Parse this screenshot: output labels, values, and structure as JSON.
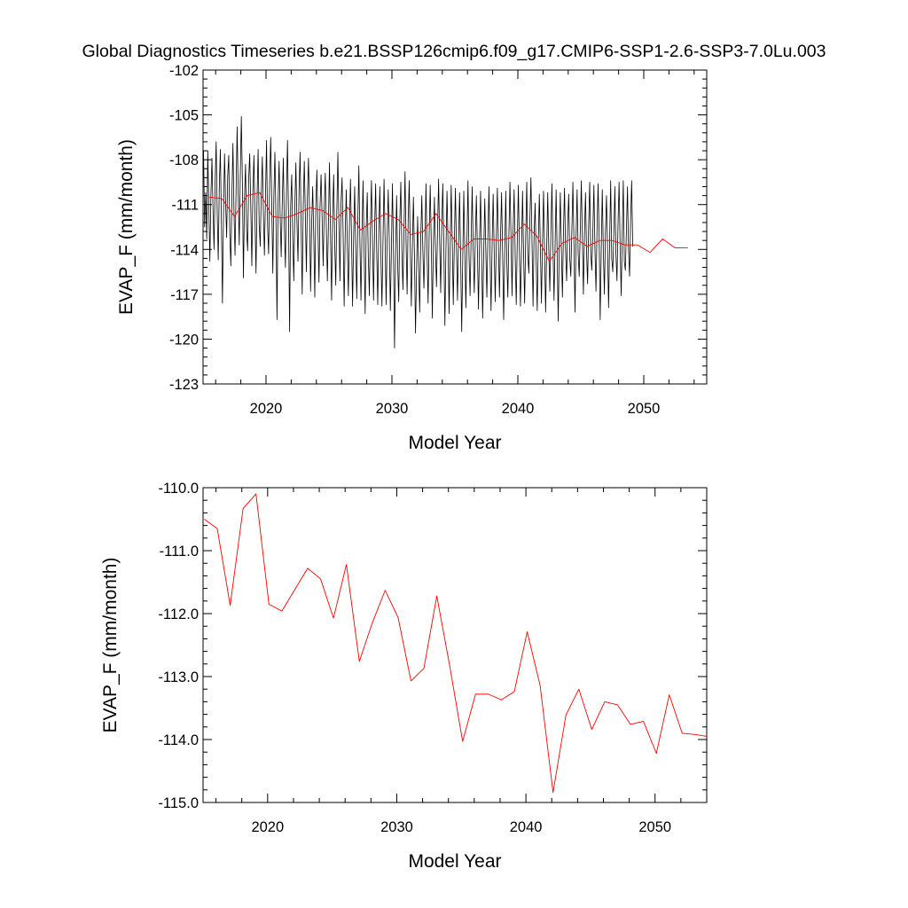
{
  "title": "Global Diagnostics Timeseries b.e21.BSSP126cmip6.f09_g17.CMIP6-SSP1-2.6-SSP3-7.0Lu.003",
  "colors": {
    "monthly": "#000000",
    "annual": "#ff0000",
    "axis": "#000000"
  },
  "chart_data": [
    {
      "type": "line",
      "xlabel": "Model Year",
      "ylabel": "EVAP_F (mm/month)",
      "xlim": [
        2015,
        2055
      ],
      "ylim": [
        -123,
        -102
      ],
      "xticks": [
        2020,
        2030,
        2040,
        2050
      ],
      "xtick_labels": [
        "2020",
        "2030",
        "2040",
        "2050"
      ],
      "yticks": [
        -102,
        -105,
        -108,
        -111,
        -114,
        -117,
        -120,
        -123
      ],
      "ytick_labels": [
        "-102",
        "-105",
        "-108",
        "-111",
        "-114",
        "-117",
        "-120",
        "-123"
      ],
      "series": [
        {
          "style": "monthly",
          "x_start": 2015.04,
          "x_step": 0.0833333,
          "values": [
            -107.4,
            -112.5,
            -110.2,
            -113.3,
            -107.4,
            -111.0,
            -114.8,
            -110.4,
            -107.9,
            -111.3,
            -114.0,
            -109.6,
            -106.8,
            -111.5,
            -114.7,
            -109.8,
            -107.3,
            -112.1,
            -117.6,
            -111.6,
            -107.6,
            -110.8,
            -113.2,
            -109.1,
            -107.7,
            -112.9,
            -115.1,
            -110.4,
            -106.9,
            -111.5,
            -114.4,
            -110.0,
            -105.8,
            -110.2,
            -113.7,
            -109.1,
            -105.1,
            -109.4,
            -115.9,
            -110.6,
            -108.3,
            -112.7,
            -114.1,
            -109.3,
            -107.6,
            -111.1,
            -115.1,
            -110.2,
            -107.7,
            -111.9,
            -115.6,
            -110.5,
            -107.3,
            -112.3,
            -113.8,
            -110.3,
            -107.8,
            -111.5,
            -114.4,
            -110.6,
            -106.7,
            -112.4,
            -114.3,
            -109.4,
            -106.5,
            -111.0,
            -115.6,
            -110.4,
            -107.5,
            -112.1,
            -118.7,
            -110.8,
            -108.1,
            -111.8,
            -114.5,
            -110.9,
            -107.9,
            -112.6,
            -115.2,
            -110.2,
            -106.7,
            -112.0,
            -119.5,
            -111.1,
            -109.0,
            -113.2,
            -116.1,
            -111.1,
            -108.2,
            -112.2,
            -114.8,
            -110.1,
            -107.5,
            -112.5,
            -117.0,
            -111.1,
            -108.1,
            -111.7,
            -115.5,
            -110.4,
            -107.9,
            -111.6,
            -116.8,
            -112.4,
            -109.8,
            -113.0,
            -117.2,
            -111.1,
            -108.7,
            -112.6,
            -116.2,
            -111.1,
            -109.0,
            -111.9,
            -115.1,
            -111.3,
            -108.9,
            -112.6,
            -116.1,
            -112.3,
            -108.2,
            -113.0,
            -117.4,
            -111.8,
            -109.0,
            -113.6,
            -116.4,
            -111.5,
            -107.5,
            -112.3,
            -116.1,
            -110.9,
            -109.2,
            -112.9,
            -117.8,
            -112.9,
            -110.0,
            -113.7,
            -117.1,
            -112.6,
            -109.3,
            -113.1,
            -117.8,
            -113.3,
            -109.8,
            -114.0,
            -117.3,
            -112.0,
            -108.4,
            -113.5,
            -117.4,
            -112.9,
            -109.4,
            -114.1,
            -118.3,
            -112.6,
            -110.2,
            -114.5,
            -117.1,
            -112.6,
            -109.4,
            -113.5,
            -117.4,
            -112.6,
            -109.6,
            -114.1,
            -117.7,
            -112.8,
            -109.8,
            -114.4,
            -117.8,
            -113.4,
            -109.3,
            -113.3,
            -117.7,
            -113.2,
            -110.0,
            -113.4,
            -118.1,
            -114.1,
            -109.6,
            -114.0,
            -120.6,
            -114.3,
            -110.4,
            -115.0,
            -117.5,
            -112.1,
            -109.5,
            -114.0,
            -116.7,
            -112.8,
            -108.8,
            -113.5,
            -117.0,
            -112.0,
            -109.4,
            -113.7,
            -117.8,
            -113.8,
            -110.5,
            -114.5,
            -119.6,
            -115.3,
            -111.8,
            -115.3,
            -118.2,
            -113.2,
            -110.4,
            -114.1,
            -116.6,
            -113.3,
            -109.6,
            -114.3,
            -117.6,
            -113.0,
            -109.7,
            -113.5,
            -118.6,
            -113.8,
            -110.5,
            -114.0,
            -116.5,
            -112.6,
            -109.3,
            -113.4,
            -116.9,
            -112.3,
            -109.6,
            -114.0,
            -119.1,
            -114.0,
            -110.1,
            -113.6,
            -118.3,
            -113.9,
            -109.7,
            -113.5,
            -117.7,
            -113.5,
            -109.9,
            -113.8,
            -117.4,
            -113.5,
            -110.2,
            -114.4,
            -119.5,
            -114.7,
            -110.1,
            -114.2,
            -117.9,
            -113.5,
            -109.4,
            -114.5,
            -117.1,
            -113.3,
            -109.8,
            -114.0,
            -116.9,
            -113.2,
            -110.4,
            -114.2,
            -118.0,
            -113.6,
            -110.1,
            -114.5,
            -118.6,
            -114.2,
            -110.6,
            -114.1,
            -117.2,
            -113.1,
            -109.8,
            -114.3,
            -118.1,
            -113.7,
            -110.3,
            -114.2,
            -117.5,
            -113.3,
            -109.9,
            -113.7,
            -117.2,
            -113.2,
            -110.2,
            -114.2,
            -118.7,
            -114.3,
            -110.1,
            -114.8,
            -117.2,
            -113.0,
            -109.5,
            -113.1,
            -117.1,
            -112.8,
            -110.0,
            -114.5,
            -117.7,
            -113.3,
            -109.7,
            -114.0,
            -117.8,
            -114.2,
            -110.1,
            -114.3,
            -117.6,
            -113.2,
            -109.5,
            -114.3,
            -115.6,
            -112.0,
            -109.2,
            -113.4,
            -117.8,
            -113.0,
            -110.9,
            -114.8,
            -118.1,
            -113.6,
            -110.3,
            -113.9,
            -117.6,
            -113.6,
            -110.1,
            -114.3,
            -118.2,
            -114.0,
            -110.2,
            -114.0,
            -116.8,
            -113.0,
            -109.6,
            -113.8,
            -117.4,
            -113.8,
            -110.0,
            -114.4,
            -118.8,
            -113.8,
            -110.2,
            -114.0,
            -117.2,
            -112.8,
            -109.9,
            -114.1,
            -116.1,
            -112.4,
            -110.3,
            -114.6,
            -115.8,
            -112.7,
            -109.5,
            -113.6,
            -118.2,
            -113.2,
            -110.0,
            -114.3,
            -115.8,
            -112.8,
            -109.4,
            -113.1,
            -117.0,
            -113.0,
            -110.2,
            -114.2,
            -116.3,
            -112.4,
            -109.5,
            -114.3,
            -115.4,
            -112.8,
            -109.7,
            -114.0,
            -116.8,
            -112.6,
            -109.6,
            -113.1,
            -118.7,
            -114.1,
            -110.0,
            -114.1,
            -117.0,
            -112.9,
            -110.4,
            -113.9,
            -117.9,
            -113.5,
            -109.4,
            -114.6,
            -115.5,
            -112.9,
            -109.8,
            -114.3,
            -116.1,
            -112.3,
            -109.5,
            -113.7,
            -117.1,
            -113.2,
            -109.4,
            -114.8,
            -115.4,
            -112.7,
            -109.8,
            -114.0,
            -115.8,
            -112.0,
            -109.4,
            -113.8
          ]
        },
        {
          "style": "annual",
          "x": [
            2015.5,
            2016.5,
            2017.5,
            2018.5,
            2019.5,
            2020.5,
            2021.5,
            2022.5,
            2023.5,
            2024.5,
            2025.5,
            2026.5,
            2027.5,
            2028.5,
            2029.5,
            2030.5,
            2031.5,
            2032.5,
            2033.5,
            2034.5,
            2035.5,
            2036.5,
            2037.5,
            2038.5,
            2039.5,
            2040.5,
            2041.5,
            2042.5,
            2043.5,
            2044.5,
            2045.5,
            2046.5,
            2047.5,
            2048.5,
            2049.5,
            2050.5,
            2051.5,
            2052.5,
            2053.5
          ],
          "values": [
            -110.5,
            -110.6,
            -111.8,
            -110.4,
            -110.2,
            -111.8,
            -111.9,
            -111.6,
            -111.2,
            -111.4,
            -112.0,
            -111.2,
            -112.7,
            -112.1,
            -111.6,
            -112.0,
            -113.0,
            -112.8,
            -111.6,
            -112.8,
            -114.0,
            -113.3,
            -113.3,
            -113.4,
            -113.2,
            -112.3,
            -113.1,
            -114.8,
            -113.6,
            -113.2,
            -113.8,
            -113.4,
            -113.4,
            -113.7,
            -113.7,
            -114.2,
            -113.3,
            -113.9,
            -113.9
          ]
        }
      ]
    },
    {
      "type": "line",
      "xlabel": "Model Year",
      "ylabel": "EVAP_F (mm/month)",
      "xlim": [
        2015,
        2054
      ],
      "ylim": [
        -115.0,
        -110.0
      ],
      "xticks": [
        2020,
        2030,
        2040,
        2050
      ],
      "xtick_labels": [
        "2020",
        "2030",
        "2040",
        "2050"
      ],
      "yticks": [
        -110.0,
        -111.0,
        -112.0,
        -113.0,
        -114.0,
        -115.0
      ],
      "ytick_labels": [
        "-110.0",
        "-111.0",
        "-112.0",
        "-113.0",
        "-114.0",
        "-115.0"
      ],
      "series": [
        {
          "style": "annual",
          "x": [
            2015.1,
            2016.1,
            2017.1,
            2018.1,
            2019.1,
            2020.1,
            2021.1,
            2022.1,
            2023.1,
            2024.1,
            2025.1,
            2026.1,
            2027.1,
            2028.1,
            2029.1,
            2030.1,
            2031.1,
            2032.1,
            2033.1,
            2034.1,
            2035.1,
            2036.1,
            2037.1,
            2038.1,
            2039.1,
            2040.1,
            2041.1,
            2042.1,
            2043.1,
            2044.1,
            2045.1,
            2046.1,
            2047.1,
            2048.1,
            2049.1,
            2050.1,
            2051.1,
            2052.1,
            2053.1,
            2054.0
          ],
          "values": [
            -110.5,
            -110.65,
            -111.87,
            -110.33,
            -110.1,
            -111.85,
            -111.96,
            -111.62,
            -111.28,
            -111.45,
            -112.07,
            -111.22,
            -112.76,
            -112.15,
            -111.63,
            -112.06,
            -113.07,
            -112.87,
            -111.72,
            -112.83,
            -114.03,
            -113.28,
            -113.28,
            -113.37,
            -113.24,
            -112.29,
            -113.14,
            -114.84,
            -113.61,
            -113.2,
            -113.84,
            -113.4,
            -113.45,
            -113.76,
            -113.71,
            -114.22,
            -113.29,
            -113.9,
            -113.92,
            -113.95
          ]
        }
      ]
    }
  ]
}
